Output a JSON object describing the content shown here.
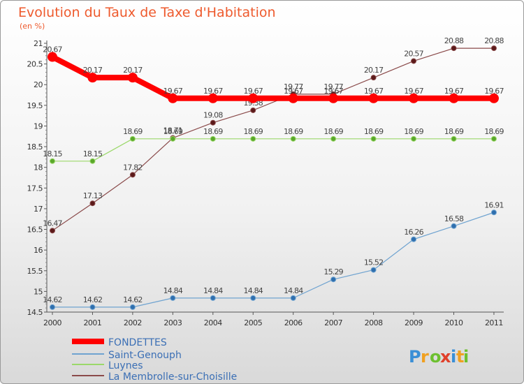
{
  "chart_data": {
    "type": "line",
    "title": "Evolution du Taux de Taxe d'Habitation",
    "subtitle": "(en %)",
    "xlabel": "",
    "ylabel": "",
    "categories": [
      "2000",
      "2001",
      "2002",
      "2003",
      "2004",
      "2005",
      "2006",
      "2007",
      "2008",
      "2009",
      "2010",
      "2011"
    ],
    "ylim": [
      14.5,
      21
    ],
    "yticks": [
      "14.5",
      "15",
      "15.5",
      "16",
      "16.5",
      "17",
      "17.5",
      "18",
      "18.5",
      "19",
      "19.5",
      "20",
      "20.5",
      "21"
    ],
    "grid": false,
    "legend_position": "bottom-left",
    "series": [
      {
        "name": "FONDETTES",
        "color": "#ff0000",
        "width": 8,
        "values": [
          20.67,
          20.17,
          20.17,
          19.67,
          19.67,
          19.67,
          19.67,
          19.67,
          19.67,
          19.67,
          19.67,
          19.67
        ]
      },
      {
        "name": "Saint-Genouph",
        "color": "#6fa3d0",
        "width": 1.2,
        "values": [
          14.62,
          14.62,
          14.62,
          14.84,
          14.84,
          14.84,
          14.84,
          15.29,
          15.52,
          16.26,
          16.58,
          16.91
        ]
      },
      {
        "name": "Luynes",
        "color": "#9bd86a",
        "width": 1.2,
        "values": [
          18.15,
          18.15,
          18.69,
          18.69,
          18.69,
          18.69,
          18.69,
          18.69,
          18.69,
          18.69,
          18.69,
          18.69
        ]
      },
      {
        "name": "La Membrolle-sur-Choisille",
        "color": "#8a4a4a",
        "width": 1.2,
        "values": [
          16.47,
          17.13,
          17.82,
          18.71,
          19.08,
          19.38,
          19.77,
          19.77,
          20.17,
          20.57,
          20.88,
          20.88
        ]
      }
    ]
  },
  "logo": {
    "text": "Proxiti"
  }
}
